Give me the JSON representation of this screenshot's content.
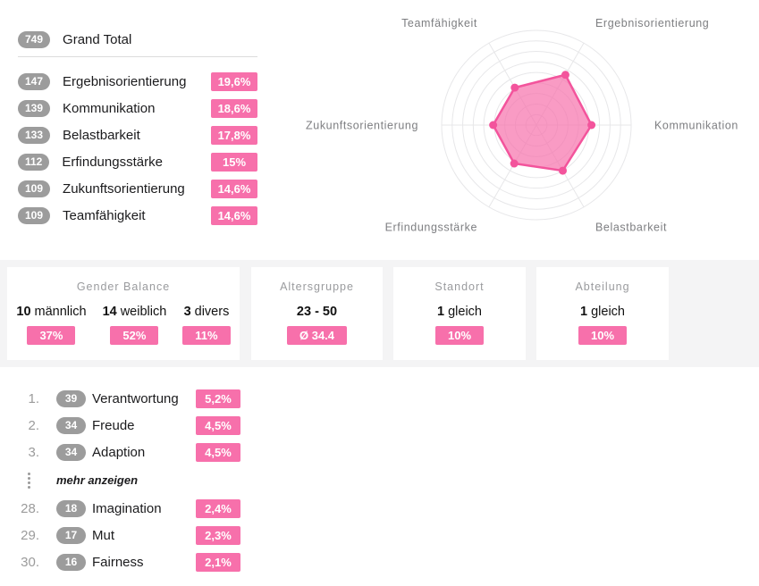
{
  "summary": {
    "grand_total": {
      "count": "749",
      "label": "Grand Total"
    },
    "items": [
      {
        "count": "147",
        "label": "Ergebnisorientierung",
        "pct": "19,6%"
      },
      {
        "count": "139",
        "label": "Kommunikation",
        "pct": "18,6%"
      },
      {
        "count": "133",
        "label": "Belastbarkeit",
        "pct": "17,8%"
      },
      {
        "count": "112",
        "label": "Erfindungsstärke",
        "pct": "15%"
      },
      {
        "count": "109",
        "label": "Zukunftsorientierung",
        "pct": "14,6%"
      },
      {
        "count": "109",
        "label": "Teamfähigkeit",
        "pct": "14,6%"
      }
    ]
  },
  "chart_data": {
    "type": "radar",
    "axes": [
      "Kommunikation",
      "Ergebnisorientierung",
      "Teamfähigkeit",
      "Zukunftsorientierung",
      "Erfindungsstärke",
      "Belastbarkeit"
    ],
    "values": [
      18.6,
      19.6,
      14.6,
      14.6,
      15.0,
      17.8
    ],
    "units": "%",
    "counts": [
      139,
      147,
      109,
      109,
      112,
      133
    ],
    "scale_max": 32,
    "rings": 9,
    "grid": "circular",
    "legend": "none",
    "colors": {
      "stroke": "#f3549c",
      "fill": "rgba(247,112,171,0.7)",
      "grid": "#e7e7e9",
      "label": "#7d7e81"
    }
  },
  "cards": [
    {
      "title": "Gender Balance",
      "stats": [
        {
          "value": "10",
          "label": "männlich",
          "badge": "37%"
        },
        {
          "value": "14",
          "label": "weiblich",
          "badge": "52%"
        },
        {
          "value": "3",
          "label": "divers",
          "badge": "11%"
        }
      ]
    },
    {
      "title": "Altersgruppe",
      "stats": [
        {
          "value": "23 - 50",
          "label": "",
          "badge": "Ø 34.4"
        }
      ]
    },
    {
      "title": "Standort",
      "stats": [
        {
          "value": "1",
          "label": "gleich",
          "badge": "10%"
        }
      ]
    },
    {
      "title": "Abteilung",
      "stats": [
        {
          "value": "1",
          "label": "gleich",
          "badge": "10%"
        }
      ]
    }
  ],
  "ranking": {
    "top": [
      {
        "rank": "1.",
        "count": "39",
        "label": "Verantwortung",
        "pct": "5,2%"
      },
      {
        "rank": "2.",
        "count": "34",
        "label": "Freude",
        "pct": "4,5%"
      },
      {
        "rank": "3.",
        "count": "34",
        "label": "Adaption",
        "pct": "4,5%"
      }
    ],
    "more_label": "mehr anzeigen",
    "bottom": [
      {
        "rank": "28.",
        "count": "18",
        "label": "Imagination",
        "pct": "2,4%"
      },
      {
        "rank": "29.",
        "count": "17",
        "label": "Mut",
        "pct": "2,3%"
      },
      {
        "rank": "30.",
        "count": "16",
        "label": "Fairness",
        "pct": "2,1%"
      }
    ]
  }
}
